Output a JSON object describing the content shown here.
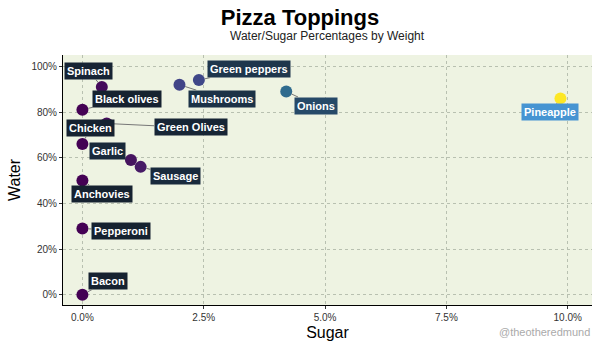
{
  "chart_data": {
    "type": "scatter",
    "title": "Pizza Toppings",
    "subtitle": "Water/Sugar Percentages by Weight",
    "x_label": "Sugar",
    "y_label": "Water",
    "annotations": [
      "@theotheredmund"
    ],
    "labels": [
      "Spinach",
      "Black olives",
      "Green Olives",
      "Chicken",
      "Garlic",
      "Sausage",
      "Anchovies",
      "Pepperoni",
      "Bacon",
      "Mushrooms",
      "Green peppers",
      "Onions",
      "Pineapple"
    ],
    "x": [
      0.4,
      0,
      0.5,
      0,
      1.0,
      1.2,
      0,
      0,
      0,
      2.0,
      2.4,
      4.2,
      9.85
    ],
    "values": [
      91,
      81,
      75,
      66,
      59,
      56,
      50,
      29,
      0,
      92,
      94,
      89,
      86
    ],
    "colors": [
      "#450a5c",
      "#440154",
      "#450a5c",
      "#440154",
      "#46145f",
      "#471a66",
      "#440154",
      "#440154",
      "#440154",
      "#414487",
      "#3f4788",
      "#2f6b8e",
      "#fde725"
    ],
    "xlim": [
      -0.4,
      10.5
    ],
    "ylim": [
      -4.5,
      105
    ],
    "xticks": [
      {
        "value": 0,
        "label": "0.0%"
      },
      {
        "value": 2.5,
        "label": "2.5%"
      },
      {
        "value": 5,
        "label": "5.0%"
      },
      {
        "value": 7.5,
        "label": "7.5%"
      },
      {
        "value": 10,
        "label": "10.0%"
      }
    ],
    "yticks": [
      {
        "value": 0,
        "label": "0%"
      },
      {
        "value": 20,
        "label": "20%"
      },
      {
        "value": 40,
        "label": "40%"
      },
      {
        "value": 60,
        "label": "60%"
      },
      {
        "value": 80,
        "label": "80%"
      },
      {
        "value": 100,
        "label": "100%"
      }
    ],
    "grid": true,
    "marker": "circle",
    "data_labels": true
  }
}
